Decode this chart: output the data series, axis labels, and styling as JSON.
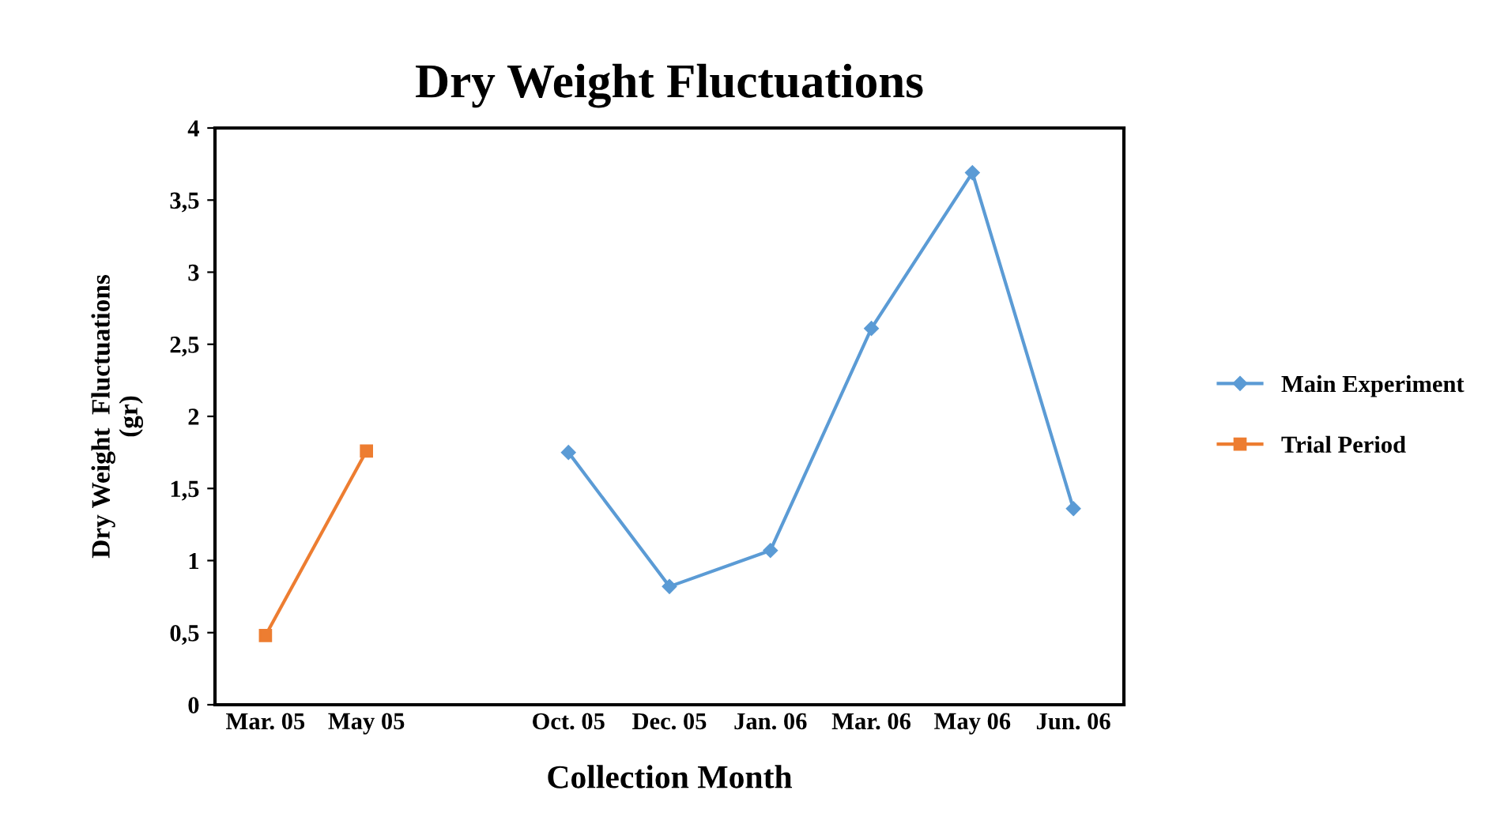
{
  "chart_data": {
    "type": "line",
    "title": "Dry Weight Fluctuations",
    "xlabel": "Collection Month",
    "ylabel": "Dry Weight  Fluctuations\n(gr)",
    "categories": [
      "Mar. 05",
      "May 05",
      null,
      "Oct. 05",
      "Dec. 05",
      "Jan. 06",
      "Mar. 06",
      "May 06",
      "Jun. 06"
    ],
    "series": [
      {
        "name": "Main Experiment",
        "color": "#5b9bd5",
        "marker": "diamond",
        "values": [
          null,
          null,
          null,
          1.75,
          0.82,
          1.07,
          2.61,
          3.69,
          1.36
        ]
      },
      {
        "name": "Trial Period",
        "color": "#ed7d31",
        "marker": "square",
        "values": [
          0.48,
          1.76,
          null,
          null,
          null,
          null,
          null,
          null,
          null
        ]
      }
    ],
    "ylim": [
      0,
      4
    ],
    "yticks": [
      0,
      {
        "value": 0.5,
        "label": "0,5"
      },
      1,
      {
        "value": 1.5,
        "label": "1,5"
      },
      2,
      {
        "value": 2.5,
        "label": "2,5"
      },
      3,
      {
        "value": 3.5,
        "label": "3,5"
      },
      4
    ],
    "grid": false,
    "legend": "right"
  }
}
